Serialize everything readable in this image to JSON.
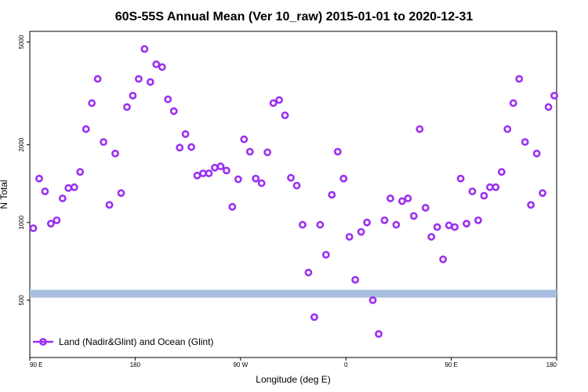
{
  "chart_data": {
    "type": "scatter",
    "title": "60S-55S Annual Mean (Ver 10_raw)   2015-01-01 to 2020-12-31",
    "xlabel": "Longitude (deg E)",
    "ylabel": "N Total",
    "x_ticks": [
      {
        "value": 90,
        "label": "90 E"
      },
      {
        "value": 180,
        "label": "180"
      },
      {
        "value": 270,
        "label": "90 W"
      },
      {
        "value": 360,
        "label": "0"
      },
      {
        "value": 450,
        "label": "90 E"
      },
      {
        "value": 540,
        "label": "180"
      }
    ],
    "y_ticks": [
      {
        "value": 500,
        "label": "500"
      },
      {
        "value": 1000,
        "label": "1000"
      },
      {
        "value": 2000,
        "label": "2000"
      },
      {
        "value": 5000,
        "label": "5000"
      }
    ],
    "xlim": [
      90,
      540
    ],
    "ylim": [
      300,
      5500
    ],
    "y_scale": "log",
    "legend": {
      "position": "bottom-left",
      "label": "Land (Nadir&Glint) and Ocean (Glint)"
    },
    "band": {
      "value": 530,
      "color": "#a8bde0"
    },
    "series": [
      {
        "name": "Land (Nadir&Glint) and Ocean (Glint)",
        "color": "#9b30f0",
        "x": [
          93,
          98,
          103,
          108,
          113,
          118,
          123,
          128,
          133,
          138,
          143,
          148,
          153,
          158,
          163,
          168,
          173,
          178,
          183,
          188,
          193,
          198,
          203,
          208,
          213,
          218,
          223,
          228,
          233,
          238,
          243,
          248,
          253,
          258,
          263,
          268,
          273,
          278,
          283,
          288,
          293,
          298,
          303,
          308,
          313,
          318,
          323,
          328,
          333,
          338,
          343,
          348,
          353,
          358,
          363,
          368,
          373,
          378,
          383,
          388,
          393,
          398,
          403,
          408,
          413,
          418,
          423,
          428,
          433,
          438,
          443,
          448,
          453,
          458,
          463,
          468,
          473,
          478,
          483,
          488,
          493,
          498,
          503,
          508,
          513,
          518,
          523,
          528,
          533,
          538
        ],
        "y": [
          950,
          1480,
          1320,
          990,
          1020,
          1240,
          1360,
          1370,
          1570,
          2300,
          2900,
          3600,
          2050,
          1170,
          1850,
          1300,
          2800,
          3100,
          3600,
          4700,
          3500,
          4100,
          4000,
          3000,
          2700,
          1950,
          2200,
          1960,
          1520,
          1550,
          1550,
          1630,
          1650,
          1590,
          1150,
          1470,
          2100,
          1880,
          1480,
          1420,
          1870,
          2900,
          2980,
          2600,
          1490,
          1390,
          980,
          640,
          430,
          980,
          750,
          1280,
          1880,
          1480,
          880,
          600,
          920,
          1000,
          500,
          370,
          1020,
          1240,
          980,
          1210,
          1240,
          1060,
          2300,
          1140,
          880,
          960,
          720,
          975,
          960,
          1480,
          990,
          1320,
          1020,
          1270,
          1370,
          1370,
          1570,
          2300,
          2900,
          3600,
          2050,
          1170,
          1850,
          1300,
          2800,
          3100
        ]
      }
    ]
  }
}
